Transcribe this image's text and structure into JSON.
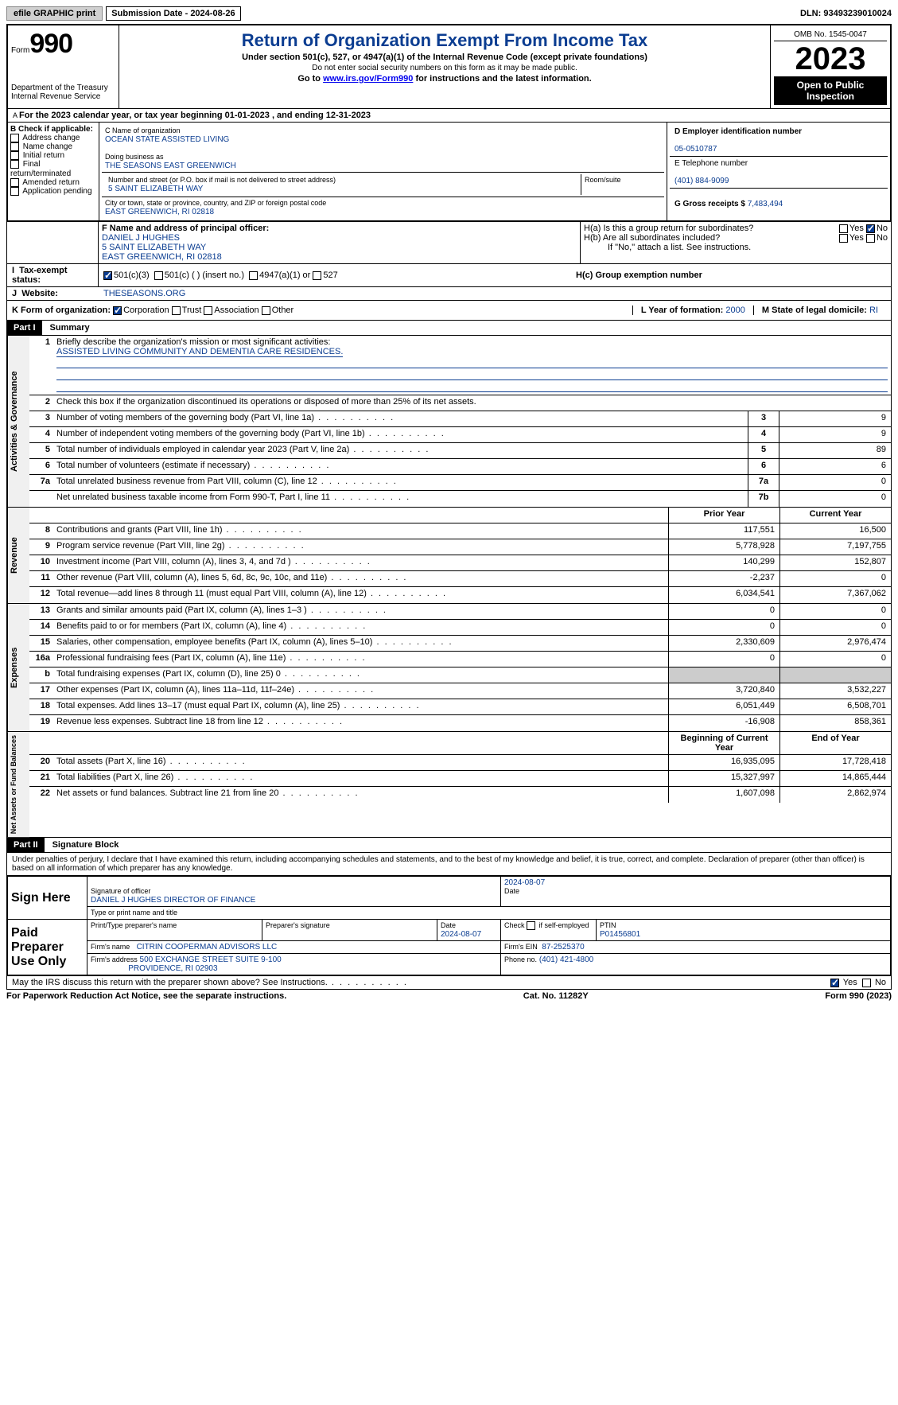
{
  "topbar": {
    "efile": "efile GRAPHIC print",
    "submission": "Submission Date - 2024-08-26",
    "dln": "DLN: 93493239010024"
  },
  "header": {
    "form_prefix": "Form",
    "form_no": "990",
    "dept": "Department of the Treasury",
    "irs": "Internal Revenue Service",
    "title": "Return of Organization Exempt From Income Tax",
    "subtitle": "Under section 501(c), 527, or 4947(a)(1) of the Internal Revenue Code (except private foundations)",
    "ssn": "Do not enter social security numbers on this form as it may be made public.",
    "goto_pre": "Go to ",
    "goto_link": "www.irs.gov/Form990",
    "goto_post": " for instructions and the latest information.",
    "omb": "OMB No. 1545-0047",
    "year": "2023",
    "public": "Open to Public Inspection"
  },
  "period": "For the 2023 calendar year, or tax year beginning 01-01-2023    , and ending 12-31-2023",
  "boxB": {
    "hdr": "B Check if applicable:",
    "items": [
      "Address change",
      "Name change",
      "Initial return",
      "Final return/terminated",
      "Amended return",
      "Application pending"
    ]
  },
  "boxC": {
    "name_lbl": "C Name of organization",
    "name": "OCEAN STATE ASSISTED LIVING",
    "dba_lbl": "Doing business as",
    "dba": "THE SEASONS EAST GREENWICH",
    "addr_lbl": "Number and street (or P.O. box if mail is not delivered to street address)",
    "room_lbl": "Room/suite",
    "addr": "5 SAINT ELIZABETH WAY",
    "city_lbl": "City or town, state or province, country, and ZIP or foreign postal code",
    "city": "EAST GREENWICH, RI  02818"
  },
  "boxD": {
    "lbl": "D Employer identification number",
    "val": "05-0510787"
  },
  "boxE": {
    "lbl": "E Telephone number",
    "val": "(401) 884-9099"
  },
  "boxG": {
    "lbl": "G Gross receipts $",
    "val": "7,483,494"
  },
  "boxF": {
    "lbl": "F  Name and address of principal officer:",
    "lines": [
      "DANIEL J HUGHES",
      "5 SAINT ELIZABETH WAY",
      "EAST GREENWICH, RI  02818"
    ]
  },
  "boxH": {
    "a": "H(a)  Is this a group return for subordinates?",
    "b": "H(b)  Are all subordinates included?",
    "note": "If \"No,\" attach a list. See instructions.",
    "c": "H(c)  Group exemption number",
    "yes": "Yes",
    "no": "No"
  },
  "taxexempt": {
    "lbl": "Tax-exempt status:",
    "opts": [
      "501(c)(3)",
      "501(c) (  ) (insert no.)",
      "4947(a)(1) or",
      "527"
    ]
  },
  "website": {
    "lbl": "Website:",
    "val": "THESEASONS.ORG"
  },
  "boxK": {
    "lbl": "K Form of organization:",
    "opts": [
      "Corporation",
      "Trust",
      "Association",
      "Other"
    ]
  },
  "boxL": {
    "lbl": "L Year of formation:",
    "val": "2000"
  },
  "boxM": {
    "lbl": "M State of legal domicile:",
    "val": "RI"
  },
  "part1": {
    "bar": "Part I",
    "title": "Summary"
  },
  "summary": {
    "q1": "Briefly describe the organization's mission or most significant activities:",
    "q1val": "ASSISTED LIVING COMMUNITY AND DEMENTIA CARE RESIDENCES.",
    "q2": "Check this box      if the organization discontinued its operations or disposed of more than 25% of its net assets.",
    "rows_gov": [
      {
        "n": "3",
        "t": "Number of voting members of the governing body (Part VI, line 1a)",
        "k": "3",
        "v": "9"
      },
      {
        "n": "4",
        "t": "Number of independent voting members of the governing body (Part VI, line 1b)",
        "k": "4",
        "v": "9"
      },
      {
        "n": "5",
        "t": "Total number of individuals employed in calendar year 2023 (Part V, line 2a)",
        "k": "5",
        "v": "89"
      },
      {
        "n": "6",
        "t": "Total number of volunteers (estimate if necessary)",
        "k": "6",
        "v": "6"
      },
      {
        "n": "7a",
        "t": "Total unrelated business revenue from Part VIII, column (C), line 12",
        "k": "7a",
        "v": "0"
      },
      {
        "n": "",
        "t": "Net unrelated business taxable income from Form 990-T, Part I, line 11",
        "k": "7b",
        "v": "0"
      }
    ],
    "col_prior": "Prior Year",
    "col_curr": "Current Year",
    "rev": [
      {
        "n": "8",
        "t": "Contributions and grants (Part VIII, line 1h)",
        "p": "117,551",
        "c": "16,500"
      },
      {
        "n": "9",
        "t": "Program service revenue (Part VIII, line 2g)",
        "p": "5,778,928",
        "c": "7,197,755"
      },
      {
        "n": "10",
        "t": "Investment income (Part VIII, column (A), lines 3, 4, and 7d )",
        "p": "140,299",
        "c": "152,807"
      },
      {
        "n": "11",
        "t": "Other revenue (Part VIII, column (A), lines 5, 6d, 8c, 9c, 10c, and 11e)",
        "p": "-2,237",
        "c": "0"
      },
      {
        "n": "12",
        "t": "Total revenue—add lines 8 through 11 (must equal Part VIII, column (A), line 12)",
        "p": "6,034,541",
        "c": "7,367,062"
      }
    ],
    "exp": [
      {
        "n": "13",
        "t": "Grants and similar amounts paid (Part IX, column (A), lines 1–3 )",
        "p": "0",
        "c": "0"
      },
      {
        "n": "14",
        "t": "Benefits paid to or for members (Part IX, column (A), line 4)",
        "p": "0",
        "c": "0"
      },
      {
        "n": "15",
        "t": "Salaries, other compensation, employee benefits (Part IX, column (A), lines 5–10)",
        "p": "2,330,609",
        "c": "2,976,474"
      },
      {
        "n": "16a",
        "t": "Professional fundraising fees (Part IX, column (A), line 11e)",
        "p": "0",
        "c": "0"
      },
      {
        "n": "b",
        "t": "Total fundraising expenses (Part IX, column (D), line 25) 0",
        "p": "",
        "c": "",
        "shade": true
      },
      {
        "n": "17",
        "t": "Other expenses (Part IX, column (A), lines 11a–11d, 11f–24e)",
        "p": "3,720,840",
        "c": "3,532,227"
      },
      {
        "n": "18",
        "t": "Total expenses. Add lines 13–17 (must equal Part IX, column (A), line 25)",
        "p": "6,051,449",
        "c": "6,508,701"
      },
      {
        "n": "19",
        "t": "Revenue less expenses. Subtract line 18 from line 12",
        "p": "-16,908",
        "c": "858,361"
      }
    ],
    "col_beg": "Beginning of Current Year",
    "col_end": "End of Year",
    "net": [
      {
        "n": "20",
        "t": "Total assets (Part X, line 16)",
        "p": "16,935,095",
        "c": "17,728,418"
      },
      {
        "n": "21",
        "t": "Total liabilities (Part X, line 26)",
        "p": "15,327,997",
        "c": "14,865,444"
      },
      {
        "n": "22",
        "t": "Net assets or fund balances. Subtract line 21 from line 20",
        "p": "1,607,098",
        "c": "2,862,974"
      }
    ],
    "cat_gov": "Activities & Governance",
    "cat_rev": "Revenue",
    "cat_exp": "Expenses",
    "cat_net": "Net Assets or Fund Balances"
  },
  "part2": {
    "bar": "Part II",
    "title": "Signature Block",
    "decl": "Under penalties of perjury, I declare that I have examined this return, including accompanying schedules and statements, and to the best of my knowledge and belief, it is true, correct, and complete. Declaration of preparer (other than officer) is based on all information of which preparer has any knowledge."
  },
  "sign": {
    "here": "Sign Here",
    "date1": "2024-08-07",
    "sig_lbl": "Signature of officer",
    "sig_name": "DANIEL J HUGHES  DIRECTOR OF FINANCE",
    "date_lbl": "Date",
    "type_lbl": "Type or print name and title",
    "paid": "Paid Preparer Use Only",
    "prep_name_lbl": "Print/Type preparer's name",
    "prep_sig_lbl": "Preparer's signature",
    "prep_date": "2024-08-07",
    "self_lbl": "Check       if self-employed",
    "ptin_lbl": "PTIN",
    "ptin": "P01456801",
    "firm_name_lbl": "Firm's name",
    "firm_name": "CITRIN COOPERMAN ADVISORS LLC",
    "firm_ein_lbl": "Firm's EIN",
    "firm_ein": "87-2525370",
    "firm_addr_lbl": "Firm's address",
    "firm_addr": "500 EXCHANGE STREET SUITE 9-100",
    "firm_city": "PROVIDENCE, RI  02903",
    "phone_lbl": "Phone no.",
    "phone": "(401) 421-4800",
    "discuss": "May the IRS discuss this return with the preparer shown above? See Instructions."
  },
  "footer": {
    "pra": "For Paperwork Reduction Act Notice, see the separate instructions.",
    "cat": "Cat. No. 11282Y",
    "form": "Form 990 (2023)"
  }
}
